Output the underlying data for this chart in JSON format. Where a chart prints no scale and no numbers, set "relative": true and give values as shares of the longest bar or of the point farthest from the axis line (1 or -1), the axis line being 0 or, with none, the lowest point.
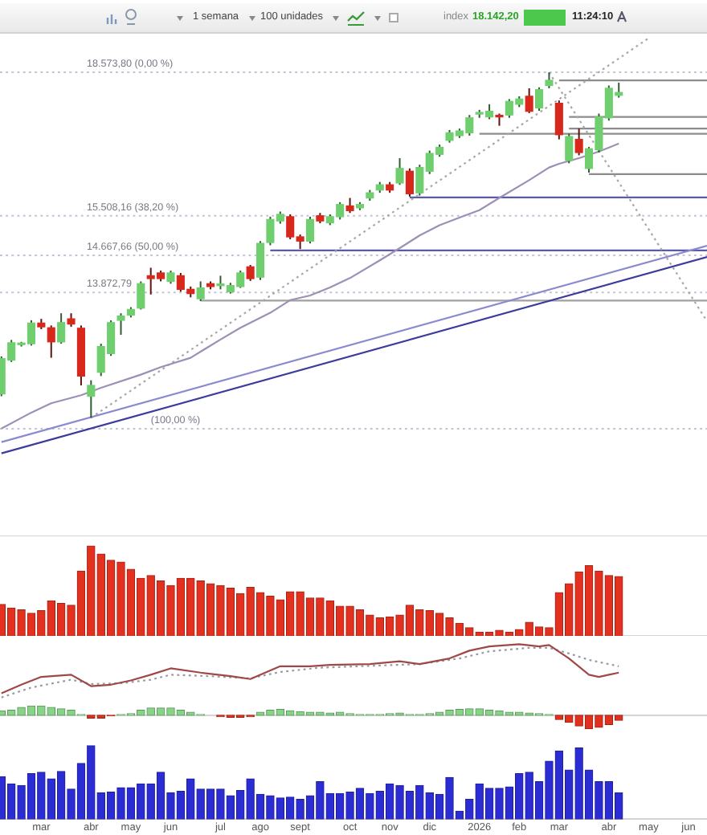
{
  "chart_data": [
    {
      "type": "candlestick",
      "annotations": [
        "1 semana",
        "100 unidades",
        "index",
        "18.142,20",
        "11:24:10",
        {
          "text": "(100,00 %)",
          "x": "2025-05-19",
          "y": 10967
        }
      ],
      "x": [
        "2025-02-03",
        "2025-02-10",
        "2025-02-17",
        "2025-02-24",
        "2025-03-03",
        "2025-03-10",
        "2025-03-17",
        "2025-03-24",
        "2025-03-31",
        "2025-04-07",
        "2025-04-14",
        "2025-04-21",
        "2025-04-28",
        "2025-05-05",
        "2025-05-12",
        "2025-05-19",
        "2025-05-26",
        "2025-06-02",
        "2025-06-09",
        "2025-06-16",
        "2025-06-23",
        "2025-06-30",
        "2025-07-07",
        "2025-07-14",
        "2025-07-21",
        "2025-07-28",
        "2025-08-04",
        "2025-08-11",
        "2025-08-18",
        "2025-08-25",
        "2025-09-01",
        "2025-09-08",
        "2025-09-15",
        "2025-09-22",
        "2025-09-29",
        "2025-10-06",
        "2025-10-13",
        "2025-10-20",
        "2025-10-27",
        "2025-11-03",
        "2025-11-10",
        "2025-11-17",
        "2025-11-24",
        "2025-12-01",
        "2025-12-08",
        "2025-12-15",
        "2025-12-22",
        "2025-12-29",
        "2026-01-05",
        "2026-01-12",
        "2026-01-19",
        "2026-01-26",
        "2026-02-02",
        "2026-02-09",
        "2026-02-16",
        "2026-02-23",
        "2026-03-02",
        "2026-03-09",
        "2026-03-16",
        "2026-03-23",
        "2026-03-30",
        "2026-04-06",
        "2026-04-13"
      ],
      "ohlc": [
        [
          11710,
          12510,
          11660,
          12460
        ],
        [
          12430,
          12860,
          12390,
          12800
        ],
        [
          12760,
          12820,
          12720,
          12790
        ],
        [
          12780,
          13280,
          12740,
          13220
        ],
        [
          13220,
          13310,
          13090,
          13140
        ],
        [
          13120,
          13170,
          12480,
          12820
        ],
        [
          12820,
          13430,
          12780,
          13230
        ],
        [
          13310,
          13430,
          13140,
          13200
        ],
        [
          13110,
          13170,
          11890,
          12090
        ],
        [
          11660,
          12000,
          11200,
          11890
        ],
        [
          12170,
          12780,
          12090,
          12720
        ],
        [
          12570,
          13280,
          12520,
          13230
        ],
        [
          13280,
          13430,
          12970,
          13370
        ],
        [
          13390,
          13560,
          13340,
          13510
        ],
        [
          13540,
          14110,
          13510,
          14060
        ],
        [
          14230,
          14400,
          13830,
          14170
        ],
        [
          14290,
          14340,
          14110,
          14170
        ],
        [
          14110,
          14340,
          14060,
          14290
        ],
        [
          14230,
          14290,
          13890,
          13940
        ],
        [
          13940,
          14000,
          13770,
          13850
        ],
        [
          13740,
          14110,
          13690,
          13970
        ],
        [
          14060,
          14110,
          13940,
          14000
        ],
        [
          14020,
          14230,
          13940,
          14030
        ],
        [
          13890,
          14080,
          13850,
          14020
        ],
        [
          14000,
          14340,
          13970,
          14290
        ],
        [
          14420,
          14460,
          14120,
          14170
        ],
        [
          14200,
          14970,
          14140,
          14920
        ],
        [
          14940,
          15490,
          14880,
          15430
        ],
        [
          15400,
          15600,
          15340,
          15540
        ],
        [
          15490,
          15540,
          15010,
          15060
        ],
        [
          15060,
          15110,
          14800,
          14970
        ],
        [
          14970,
          15490,
          14920,
          15430
        ],
        [
          15510,
          15570,
          15350,
          15400
        ],
        [
          15360,
          15540,
          15310,
          15490
        ],
        [
          15490,
          15800,
          15430,
          15750
        ],
        [
          15720,
          15890,
          15570,
          15620
        ],
        [
          15680,
          15800,
          15630,
          15750
        ],
        [
          15890,
          16060,
          15830,
          16000
        ],
        [
          16060,
          16230,
          16000,
          16170
        ],
        [
          16170,
          16230,
          16000,
          16060
        ],
        [
          16210,
          16740,
          16170,
          16520
        ],
        [
          16460,
          16520,
          15920,
          15980
        ],
        [
          16000,
          16600,
          15940,
          16540
        ],
        [
          16460,
          16900,
          16400,
          16840
        ],
        [
          16820,
          17030,
          16770,
          16970
        ],
        [
          17120,
          17340,
          17070,
          17280
        ],
        [
          17220,
          17370,
          17170,
          17320
        ],
        [
          17280,
          17660,
          17220,
          17600
        ],
        [
          17680,
          17770,
          17600,
          17700
        ],
        [
          17620,
          17890,
          17570,
          17740
        ],
        [
          17630,
          17690,
          17430,
          17620
        ],
        [
          17660,
          18000,
          17600,
          17950
        ],
        [
          17890,
          18060,
          17830,
          18000
        ],
        [
          18060,
          18230,
          17700,
          17740
        ],
        [
          17810,
          18250,
          17750,
          18200
        ],
        [
          18290,
          18570,
          18230,
          18400
        ],
        [
          17910,
          17970,
          17140,
          17240
        ],
        [
          16690,
          17260,
          16630,
          17200
        ],
        [
          17140,
          17370,
          16800,
          16860
        ],
        [
          16520,
          16980,
          16430,
          16940
        ],
        [
          16920,
          17690,
          16860,
          17620
        ],
        [
          17600,
          18290,
          17540,
          18230
        ],
        [
          18080,
          18350,
          18030,
          18140
        ]
      ],
      "colors": [
        "#6fcf6f",
        "#6fcf6f",
        "#6fcf6f",
        "#6fcf6f",
        "#d8281c",
        "#d8281c",
        "#6fcf6f",
        "#d8281c",
        "#d8281c",
        "#6fcf6f",
        "#6fcf6f",
        "#6fcf6f",
        "#6fcf6f",
        "#6fcf6f",
        "#6fcf6f",
        "#d8281c",
        "#d8281c",
        "#6fcf6f",
        "#d8281c",
        "#d8281c",
        "#6fcf6f",
        "#d8281c",
        "#6fcf6f",
        "#6fcf6f",
        "#6fcf6f",
        "#d8281c",
        "#6fcf6f",
        "#6fcf6f",
        "#6fcf6f",
        "#d8281c",
        "#d8281c",
        "#6fcf6f",
        "#d8281c",
        "#6fcf6f",
        "#6fcf6f",
        "#d8281c",
        "#6fcf6f",
        "#6fcf6f",
        "#6fcf6f",
        "#d8281c",
        "#6fcf6f",
        "#d8281c",
        "#6fcf6f",
        "#6fcf6f",
        "#6fcf6f",
        "#6fcf6f",
        "#6fcf6f",
        "#6fcf6f",
        "#6fcf6f",
        "#6fcf6f",
        "#d8281c",
        "#6fcf6f",
        "#6fcf6f",
        "#d8281c",
        "#6fcf6f",
        "#6fcf6f",
        "#d8281c",
        "#6fcf6f",
        "#d8281c",
        "#6fcf6f",
        "#6fcf6f",
        "#6fcf6f",
        "#6fcf6f"
      ],
      "xlim": [
        "2025-02-02",
        "2026-06-14"
      ],
      "ylim": [
        8670,
        19360
      ],
      "tick_labels": false,
      "ref_lines": [
        {
          "axis": "y",
          "value": 18573.8,
          "label": "18.573,80 (0,00 %)",
          "color": "#c2c2d6",
          "line_style": "dotted"
        },
        {
          "axis": "y",
          "value": 15508.16,
          "label": "15.508,16 (38,20 %)",
          "color": "#c2c2d6",
          "line_style": "dotted"
        },
        {
          "axis": "y",
          "value": 14667.66,
          "label": "14.667,66 (50,00 %)",
          "color": "#c2c2d6",
          "line_style": "dotted"
        },
        {
          "axis": "y",
          "value": 13872.79,
          "label": "13.872,79",
          "color": "#c2c2d6",
          "line_style": "dotted"
        },
        {
          "axis": "y",
          "value": 10967,
          "color": "#c2c2d6",
          "line_style": "dotted"
        }
      ],
      "series": [
        {
          "type": "line",
          "color": "#9d8fb5",
          "x": [
            "2025-02-03",
            "2025-02-24",
            "2025-03-10",
            "2025-03-31",
            "2025-04-14",
            "2025-05-12",
            "2025-05-26",
            "2025-06-16",
            "2025-07-07",
            "2025-07-21",
            "2025-08-11",
            "2025-08-25",
            "2025-09-08",
            "2025-09-22",
            "2025-10-06",
            "2025-10-27",
            "2025-11-10",
            "2025-11-24",
            "2025-12-08",
            "2025-12-22",
            "2026-01-05",
            "2026-01-19",
            "2026-02-09",
            "2026-02-23",
            "2026-03-02",
            "2026-03-16",
            "2026-03-30",
            "2026-04-13"
          ],
          "values": [
            10970,
            11310,
            11510,
            11680,
            11840,
            12120,
            12280,
            12480,
            12870,
            13120,
            13440,
            13710,
            13810,
            13980,
            14180,
            14560,
            14820,
            15090,
            15310,
            15470,
            15630,
            15890,
            16270,
            16540,
            16620,
            16740,
            16880,
            17050
          ]
        },
        {
          "type": "line",
          "color": "#8a8ad0",
          "x": [
            "2025-02-03",
            "2026-06-14"
          ],
          "values": [
            10680,
            14870
          ]
        },
        {
          "type": "line",
          "color": "#3c3c9c",
          "x": [
            "2025-02-03",
            "2026-06-14"
          ],
          "values": [
            10440,
            14630
          ]
        },
        {
          "type": "line",
          "color": "#a8a8a8",
          "line_style": "dotted",
          "x": [
            "2025-04-07",
            "2026-05-04"
          ],
          "values": [
            11200,
            19300
          ]
        },
        {
          "type": "line",
          "color": "#a8a8a8",
          "line_style": "dotted",
          "x": [
            "2026-02-23",
            "2026-06-14"
          ],
          "values": [
            18570,
            13260
          ]
        },
        {
          "type": "line",
          "color": "#8c8c8c",
          "x": [
            "2026-03-02",
            "2026-06-14"
          ],
          "values": [
            18400,
            18400
          ]
        },
        {
          "type": "line",
          "color": "#8c8c8c",
          "x": [
            "2026-03-09",
            "2026-06-14"
          ],
          "values": [
            17620,
            17620
          ]
        },
        {
          "type": "line",
          "color": "#8c8c8c",
          "x": [
            "2026-03-09",
            "2026-06-14"
          ],
          "values": [
            17370,
            17370
          ]
        },
        {
          "type": "line",
          "color": "#8c8c8c",
          "x": [
            "2026-01-05",
            "2026-06-14"
          ],
          "values": [
            17260,
            17260
          ]
        },
        {
          "type": "line",
          "color": "#8c8c8c",
          "x": [
            "2026-03-23",
            "2026-06-14"
          ],
          "values": [
            16400,
            16400
          ]
        },
        {
          "type": "line",
          "color": "#a0a0a0",
          "x": [
            "2025-06-23",
            "2026-06-14"
          ],
          "values": [
            13700,
            13700
          ]
        },
        {
          "type": "line",
          "color": "#5a5ab4",
          "x": [
            "2025-11-17",
            "2026-06-14"
          ],
          "values": [
            15900,
            15900
          ]
        },
        {
          "type": "line",
          "color": "#5a5ab4",
          "x": [
            "2025-08-11",
            "2026-06-14"
          ],
          "values": [
            14770,
            14770
          ]
        }
      ]
    },
    {
      "type": "bar",
      "relative": true,
      "color": "#e3301f",
      "xlim": [
        "2025-02-02",
        "2026-06-14"
      ],
      "tick_labels": false,
      "x": [
        "2025-02-03",
        "2025-02-10",
        "2025-02-17",
        "2025-02-24",
        "2025-03-03",
        "2025-03-10",
        "2025-03-17",
        "2025-03-24",
        "2025-03-31",
        "2025-04-07",
        "2025-04-14",
        "2025-04-21",
        "2025-04-28",
        "2025-05-05",
        "2025-05-12",
        "2025-05-19",
        "2025-05-26",
        "2025-06-02",
        "2025-06-09",
        "2025-06-16",
        "2025-06-23",
        "2025-06-30",
        "2025-07-07",
        "2025-07-14",
        "2025-07-21",
        "2025-07-28",
        "2025-08-04",
        "2025-08-11",
        "2025-08-18",
        "2025-08-25",
        "2025-09-01",
        "2025-09-08",
        "2025-09-15",
        "2025-09-22",
        "2025-09-29",
        "2025-10-06",
        "2025-10-13",
        "2025-10-20",
        "2025-10-27",
        "2025-11-03",
        "2025-11-10",
        "2025-11-17",
        "2025-11-24",
        "2025-12-01",
        "2025-12-08",
        "2025-12-15",
        "2025-12-22",
        "2025-12-29",
        "2026-01-05",
        "2026-01-12",
        "2026-01-19",
        "2026-01-26",
        "2026-02-02",
        "2026-02-09",
        "2026-02-16",
        "2026-02-23",
        "2026-03-02",
        "2026-03-09",
        "2026-03-16",
        "2026-03-23",
        "2026-03-30",
        "2026-04-06",
        "2026-04-13"
      ],
      "values": [
        0.35,
        0.31,
        0.29,
        0.25,
        0.28,
        0.39,
        0.36,
        0.34,
        0.72,
        1,
        0.91,
        0.84,
        0.82,
        0.74,
        0.64,
        0.67,
        0.61,
        0.56,
        0.64,
        0.64,
        0.61,
        0.58,
        0.56,
        0.53,
        0.47,
        0.54,
        0.48,
        0.44,
        0.4,
        0.49,
        0.49,
        0.42,
        0.42,
        0.39,
        0.33,
        0.33,
        0.29,
        0.23,
        0.2,
        0.21,
        0.23,
        0.34,
        0.29,
        0.28,
        0.25,
        0.2,
        0.14,
        0.09,
        0.04,
        0.04,
        0.06,
        0.04,
        0.07,
        0.15,
        0.1,
        0.09,
        0.48,
        0.58,
        0.71,
        0.78,
        0.72,
        0.67,
        0.66
      ]
    },
    {
      "type": "line",
      "relative": true,
      "xlim": [
        "2025-02-02",
        "2026-06-14"
      ],
      "tick_labels": false,
      "series": [
        {
          "type": "line",
          "color": "#a04848",
          "x": [
            "2025-02-03",
            "2025-02-17",
            "2025-03-03",
            "2025-03-24",
            "2025-04-07",
            "2025-04-21",
            "2025-05-05",
            "2025-05-19",
            "2025-06-02",
            "2025-06-23",
            "2025-07-14",
            "2025-07-28",
            "2025-08-18",
            "2025-09-08",
            "2025-09-22",
            "2025-10-20",
            "2025-11-10",
            "2025-11-24",
            "2025-12-15",
            "2025-12-29",
            "2026-01-12",
            "2026-02-02",
            "2026-02-16",
            "2026-02-23",
            "2026-03-09",
            "2026-03-23",
            "2026-03-30",
            "2026-04-06",
            "2026-04-13"
          ],
          "values": [
            0.31,
            0.43,
            0.54,
            0.57,
            0.41,
            0.43,
            0.49,
            0.57,
            0.66,
            0.6,
            0.55,
            0.51,
            0.69,
            0.69,
            0.71,
            0.72,
            0.76,
            0.72,
            0.8,
            0.91,
            0.97,
            1,
            0.97,
            0.99,
            0.8,
            0.57,
            0.54,
            0.57,
            0.6
          ]
        },
        {
          "type": "line",
          "color": "#9a9a9a",
          "line_style": "dotted",
          "x": [
            "2025-02-03",
            "2025-02-24",
            "2025-03-24",
            "2025-04-07",
            "2025-04-28",
            "2025-05-19",
            "2025-06-02",
            "2025-06-30",
            "2025-07-28",
            "2025-08-18",
            "2025-09-15",
            "2025-10-27",
            "2025-11-24",
            "2025-12-22",
            "2026-01-12",
            "2026-02-09",
            "2026-02-23",
            "2026-03-09",
            "2026-03-23",
            "2026-04-13"
          ],
          "values": [
            0.25,
            0.39,
            0.5,
            0.44,
            0.45,
            0.5,
            0.57,
            0.55,
            0.52,
            0.61,
            0.67,
            0.7,
            0.72,
            0.8,
            0.9,
            0.95,
            0.95,
            0.87,
            0.78,
            0.69
          ]
        },
        {
          "type": "bar",
          "x": [
            "2025-02-03",
            "2025-02-10",
            "2025-02-17",
            "2025-02-24",
            "2025-03-03",
            "2025-03-10",
            "2025-03-17",
            "2025-03-24",
            "2025-03-31",
            "2025-04-07",
            "2025-04-14",
            "2025-04-21",
            "2025-04-28",
            "2025-05-05",
            "2025-05-12",
            "2025-05-19",
            "2025-05-26",
            "2025-06-02",
            "2025-06-09",
            "2025-06-16",
            "2025-06-23",
            "2025-06-30",
            "2025-07-07",
            "2025-07-14",
            "2025-07-21",
            "2025-07-28",
            "2025-08-04",
            "2025-08-11",
            "2025-08-18",
            "2025-08-25",
            "2025-09-01",
            "2025-09-08",
            "2025-09-15",
            "2025-09-22",
            "2025-09-29",
            "2025-10-06",
            "2025-10-13",
            "2025-10-20",
            "2025-10-27",
            "2025-11-03",
            "2025-11-10",
            "2025-11-17",
            "2025-11-24",
            "2025-12-01",
            "2025-12-08",
            "2025-12-15",
            "2025-12-22",
            "2025-12-29",
            "2026-01-05",
            "2026-01-12",
            "2026-01-19",
            "2026-01-26",
            "2026-02-02",
            "2026-02-09",
            "2026-02-16",
            "2026-02-23",
            "2026-03-02",
            "2026-03-09",
            "2026-03-16",
            "2026-03-23",
            "2026-03-30",
            "2026-04-06",
            "2026-04-13"
          ],
          "values": [
            0.06,
            0.07,
            0.11,
            0.13,
            0.13,
            0.11,
            0.09,
            0.07,
            0.01,
            -0.04,
            -0.04,
            -0.01,
            0.01,
            0.02,
            0.07,
            0.1,
            0.1,
            0.1,
            0.07,
            0.04,
            0.01,
            0,
            -0.02,
            -0.03,
            -0.03,
            -0.02,
            0.04,
            0.07,
            0.08,
            0.06,
            0.05,
            0.04,
            0.04,
            0.03,
            0.04,
            0.02,
            0.01,
            0.01,
            0.01,
            0.02,
            0.03,
            0.01,
            0.01,
            0.02,
            0.04,
            0.07,
            0.08,
            0.09,
            0.09,
            0.07,
            0.06,
            0.04,
            0.04,
            0.03,
            0.02,
            0.01,
            -0.06,
            -0.1,
            -0.15,
            -0.19,
            -0.17,
            -0.13,
            -0.07
          ],
          "colors": [
            "#86d486",
            "#86d486",
            "#86d486",
            "#86d486",
            "#86d486",
            "#86d486",
            "#86d486",
            "#86d486",
            "#86d486",
            "#e0301e",
            "#e0301e",
            "#e0301e",
            "#86d486",
            "#86d486",
            "#86d486",
            "#86d486",
            "#86d486",
            "#86d486",
            "#86d486",
            "#86d486",
            "#86d486",
            "#86d486",
            "#e0301e",
            "#e0301e",
            "#e0301e",
            "#e0301e",
            "#86d486",
            "#86d486",
            "#86d486",
            "#86d486",
            "#86d486",
            "#86d486",
            "#86d486",
            "#86d486",
            "#86d486",
            "#86d486",
            "#86d486",
            "#86d486",
            "#86d486",
            "#86d486",
            "#86d486",
            "#86d486",
            "#86d486",
            "#86d486",
            "#86d486",
            "#86d486",
            "#86d486",
            "#86d486",
            "#86d486",
            "#86d486",
            "#86d486",
            "#86d486",
            "#86d486",
            "#86d486",
            "#86d486",
            "#86d486",
            "#e0301e",
            "#e0301e",
            "#e0301e",
            "#e0301e",
            "#e0301e",
            "#e0301e",
            "#e0301e"
          ]
        }
      ]
    },
    {
      "type": "bar",
      "relative": true,
      "color": "#2c2cd4",
      "xlim": [
        "2025-02-02",
        "2026-06-14"
      ],
      "tick_labels": "x",
      "xticks": [
        {
          "value": "2025-03-03",
          "label": "mar"
        },
        {
          "value": "2025-04-07",
          "label": "abr"
        },
        {
          "value": "2025-05-05",
          "label": "may"
        },
        {
          "value": "2025-06-02",
          "label": "jun"
        },
        {
          "value": "2025-07-07",
          "label": "jul"
        },
        {
          "value": "2025-08-04",
          "label": "ago"
        },
        {
          "value": "2025-09-01",
          "label": "sept"
        },
        {
          "value": "2025-10-06",
          "label": "oct"
        },
        {
          "value": "2025-11-03",
          "label": "nov"
        },
        {
          "value": "2025-12-01",
          "label": "dic"
        },
        {
          "value": "2026-01-05",
          "label": "2026"
        },
        {
          "value": "2026-02-02",
          "label": "feb"
        },
        {
          "value": "2026-03-02",
          "label": "mar"
        },
        {
          "value": "2026-04-06",
          "label": "abr"
        },
        {
          "value": "2026-05-04",
          "label": "may"
        },
        {
          "value": "2026-06-01",
          "label": "jun"
        }
      ],
      "x": [
        "2025-02-03",
        "2025-02-10",
        "2025-02-17",
        "2025-02-24",
        "2025-03-03",
        "2025-03-10",
        "2025-03-17",
        "2025-03-24",
        "2025-03-31",
        "2025-04-07",
        "2025-04-14",
        "2025-04-21",
        "2025-04-28",
        "2025-05-05",
        "2025-05-12",
        "2025-05-19",
        "2025-05-26",
        "2025-06-02",
        "2025-06-09",
        "2025-06-16",
        "2025-06-23",
        "2025-06-30",
        "2025-07-07",
        "2025-07-14",
        "2025-07-21",
        "2025-07-28",
        "2025-08-04",
        "2025-08-11",
        "2025-08-18",
        "2025-08-25",
        "2025-09-01",
        "2025-09-08",
        "2025-09-15",
        "2025-09-22",
        "2025-09-29",
        "2025-10-06",
        "2025-10-13",
        "2025-10-20",
        "2025-10-27",
        "2025-11-03",
        "2025-11-10",
        "2025-11-17",
        "2025-11-24",
        "2025-12-01",
        "2025-12-08",
        "2025-12-15",
        "2025-12-22",
        "2025-12-29",
        "2026-01-05",
        "2026-01-12",
        "2026-01-19",
        "2026-01-26",
        "2026-02-02",
        "2026-02-09",
        "2026-02-16",
        "2026-02-23",
        "2026-03-02",
        "2026-03-09",
        "2026-03-16",
        "2026-03-23",
        "2026-03-30",
        "2026-04-06",
        "2026-04-13"
      ],
      "values": [
        0.58,
        0.48,
        0.46,
        0.62,
        0.64,
        0.55,
        0.65,
        0.41,
        0.76,
        1,
        0.36,
        0.37,
        0.43,
        0.43,
        0.48,
        0.48,
        0.64,
        0.36,
        0.38,
        0.55,
        0.41,
        0.41,
        0.41,
        0.32,
        0.39,
        0.55,
        0.34,
        0.32,
        0.29,
        0.3,
        0.27,
        0.32,
        0.51,
        0.35,
        0.35,
        0.37,
        0.42,
        0.35,
        0.38,
        0.48,
        0.46,
        0.38,
        0.46,
        0.36,
        0.34,
        0.57,
        0.11,
        0.27,
        0.48,
        0.42,
        0.42,
        0.44,
        0.62,
        0.64,
        0.51,
        0.79,
        0.93,
        0.67,
        0.97,
        0.67,
        0.51,
        0.51,
        0.36
      ]
    }
  ]
}
